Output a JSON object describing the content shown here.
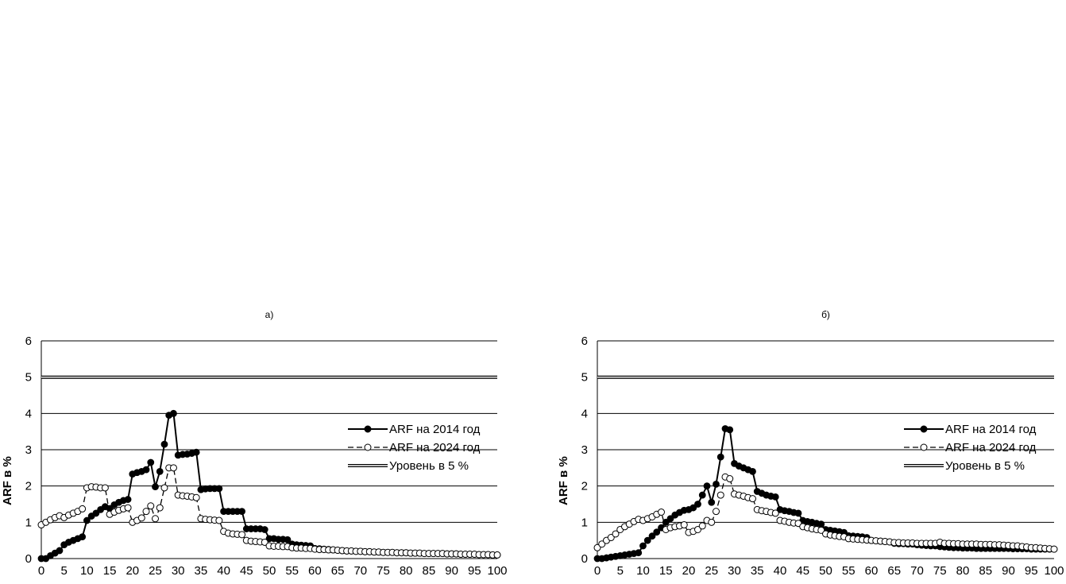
{
  "figure": {
    "background": "#ffffff",
    "colors": {
      "series_2014": "#000000",
      "series_2024": "#000000",
      "level_line": "#000000",
      "grid": "#000000"
    }
  },
  "chart_data": [
    {
      "type": "line",
      "panel_label": "a)",
      "ylabel": "ARF в %",
      "xlabel": "",
      "ylim": [
        0,
        6
      ],
      "yticks": [
        0,
        1,
        2,
        3,
        4,
        5,
        6
      ],
      "xlim": [
        0,
        100
      ],
      "xticks": [
        0,
        5,
        10,
        15,
        20,
        25,
        30,
        35,
        40,
        45,
        50,
        55,
        60,
        65,
        70,
        75,
        80,
        85,
        90,
        95,
        100
      ],
      "grid": true,
      "legend_position": "right",
      "series": [
        {
          "name": "ARF на 2014 год",
          "style": "solid-filled",
          "x": [
            0,
            1,
            2,
            3,
            4,
            5,
            6,
            7,
            8,
            9,
            10,
            11,
            12,
            13,
            14,
            15,
            16,
            17,
            18,
            19,
            20,
            21,
            22,
            23,
            24,
            25,
            26,
            27,
            28,
            29,
            30,
            31,
            32,
            33,
            34,
            35,
            36,
            37,
            38,
            39,
            40,
            41,
            42,
            43,
            44,
            45,
            46,
            47,
            48,
            49,
            50,
            51,
            52,
            53,
            54,
            55,
            56,
            57,
            58,
            59,
            60,
            61,
            62,
            63,
            64,
            65,
            66,
            67,
            68,
            69,
            70,
            71,
            72,
            73,
            74,
            75,
            76,
            77,
            78,
            79,
            80,
            81,
            82,
            83,
            84,
            85,
            86,
            87,
            88,
            89,
            90,
            91,
            92,
            93,
            94,
            95,
            96,
            97,
            98,
            99,
            100
          ],
          "y": [
            0,
            0,
            0.08,
            0.15,
            0.22,
            0.38,
            0.45,
            0.5,
            0.55,
            0.6,
            1.05,
            1.17,
            1.25,
            1.35,
            1.43,
            1.38,
            1.48,
            1.55,
            1.6,
            1.63,
            2.33,
            2.37,
            2.4,
            2.45,
            2.65,
            1.98,
            2.4,
            3.15,
            3.95,
            4.0,
            2.85,
            2.87,
            2.88,
            2.9,
            2.93,
            1.9,
            1.92,
            1.93,
            1.93,
            1.93,
            1.3,
            1.3,
            1.3,
            1.3,
            1.3,
            0.82,
            0.82,
            0.82,
            0.82,
            0.8,
            0.55,
            0.55,
            0.53,
            0.53,
            0.52,
            0.4,
            0.38,
            0.37,
            0.36,
            0.35,
            0.28,
            0.27,
            0.26,
            0.25,
            0.24,
            0.23,
            0.22,
            0.21,
            0.21,
            0.2,
            0.2,
            0.19,
            0.19,
            0.18,
            0.18,
            0.17,
            0.17,
            0.17,
            0.16,
            0.16,
            0.16,
            0.15,
            0.15,
            0.15,
            0.14,
            0.14,
            0.14,
            0.14,
            0.14,
            0.13,
            0.13,
            0.13,
            0.12,
            0.12,
            0.12,
            0.12,
            0.11,
            0.11,
            0.11,
            0.1,
            0.1
          ]
        },
        {
          "name": "ARF на 2024 год",
          "style": "dashed-open",
          "x": [
            0,
            1,
            2,
            3,
            4,
            5,
            6,
            7,
            8,
            9,
            10,
            11,
            12,
            13,
            14,
            15,
            16,
            17,
            18,
            19,
            20,
            21,
            22,
            23,
            24,
            25,
            26,
            27,
            28,
            29,
            30,
            31,
            32,
            33,
            34,
            35,
            36,
            37,
            38,
            39,
            40,
            41,
            42,
            43,
            44,
            45,
            46,
            47,
            48,
            49,
            50,
            51,
            52,
            53,
            54,
            55,
            56,
            57,
            58,
            59,
            60,
            61,
            62,
            63,
            64,
            65,
            66,
            67,
            68,
            69,
            70,
            71,
            72,
            73,
            74,
            75,
            76,
            77,
            78,
            79,
            80,
            81,
            82,
            83,
            84,
            85,
            86,
            87,
            88,
            89,
            90,
            91,
            92,
            93,
            94,
            95,
            96,
            97,
            98,
            99,
            100
          ],
          "y": [
            0.93,
            1.0,
            1.07,
            1.13,
            1.18,
            1.13,
            1.2,
            1.25,
            1.3,
            1.37,
            1.95,
            1.98,
            1.97,
            1.95,
            1.95,
            1.22,
            1.28,
            1.33,
            1.37,
            1.4,
            1.0,
            1.05,
            1.12,
            1.3,
            1.45,
            1.1,
            1.4,
            1.95,
            2.5,
            2.5,
            1.75,
            1.73,
            1.72,
            1.7,
            1.68,
            1.1,
            1.08,
            1.07,
            1.06,
            1.05,
            0.75,
            0.7,
            0.68,
            0.67,
            0.66,
            0.5,
            0.48,
            0.47,
            0.46,
            0.45,
            0.35,
            0.34,
            0.34,
            0.33,
            0.33,
            0.3,
            0.29,
            0.29,
            0.28,
            0.28,
            0.26,
            0.25,
            0.25,
            0.24,
            0.24,
            0.23,
            0.22,
            0.21,
            0.21,
            0.2,
            0.2,
            0.19,
            0.19,
            0.18,
            0.18,
            0.17,
            0.17,
            0.17,
            0.16,
            0.16,
            0.16,
            0.15,
            0.15,
            0.15,
            0.14,
            0.14,
            0.14,
            0.14,
            0.14,
            0.13,
            0.13,
            0.13,
            0.12,
            0.12,
            0.12,
            0.12,
            0.11,
            0.11,
            0.11,
            0.1,
            0.1
          ]
        },
        {
          "name": "Уровень в 5 %",
          "style": "double",
          "x": [
            0,
            100
          ],
          "y": [
            5,
            5
          ]
        }
      ]
    },
    {
      "type": "line",
      "panel_label": "б)",
      "ylabel": "ARF в %",
      "xlabel": "",
      "ylim": [
        0,
        6
      ],
      "yticks": [
        0,
        1,
        2,
        3,
        4,
        5,
        6
      ],
      "xlim": [
        0,
        100
      ],
      "xticks": [
        0,
        5,
        10,
        15,
        20,
        25,
        30,
        35,
        40,
        45,
        50,
        55,
        60,
        65,
        70,
        75,
        80,
        85,
        90,
        95,
        100
      ],
      "grid": true,
      "legend_position": "right",
      "series": [
        {
          "name": "ARF на 2014 год",
          "style": "solid-filled",
          "x": [
            0,
            1,
            2,
            3,
            4,
            5,
            6,
            7,
            8,
            9,
            10,
            11,
            12,
            13,
            14,
            15,
            16,
            17,
            18,
            19,
            20,
            21,
            22,
            23,
            24,
            25,
            26,
            27,
            28,
            29,
            30,
            31,
            32,
            33,
            34,
            35,
            36,
            37,
            38,
            39,
            40,
            41,
            42,
            43,
            44,
            45,
            46,
            47,
            48,
            49,
            50,
            51,
            52,
            53,
            54,
            55,
            56,
            57,
            58,
            59,
            60,
            61,
            62,
            63,
            64,
            65,
            66,
            67,
            68,
            69,
            70,
            71,
            72,
            73,
            74,
            75,
            76,
            77,
            78,
            79,
            80,
            81,
            82,
            83,
            84,
            85,
            86,
            87,
            88,
            89,
            90,
            91,
            92,
            93,
            94,
            95,
            96,
            97,
            98,
            99,
            100
          ],
          "y": [
            0,
            0,
            0.02,
            0.04,
            0.06,
            0.08,
            0.1,
            0.12,
            0.14,
            0.16,
            0.35,
            0.5,
            0.62,
            0.73,
            0.85,
            1.0,
            1.1,
            1.2,
            1.27,
            1.33,
            1.35,
            1.4,
            1.5,
            1.75,
            2.0,
            1.55,
            2.05,
            2.8,
            3.58,
            3.55,
            2.62,
            2.55,
            2.5,
            2.45,
            2.4,
            1.85,
            1.8,
            1.75,
            1.72,
            1.7,
            1.35,
            1.32,
            1.3,
            1.27,
            1.25,
            1.05,
            1.02,
            1.0,
            0.97,
            0.95,
            0.8,
            0.78,
            0.76,
            0.74,
            0.72,
            0.63,
            0.62,
            0.61,
            0.6,
            0.58,
            0.5,
            0.49,
            0.48,
            0.47,
            0.46,
            0.42,
            0.41,
            0.41,
            0.4,
            0.4,
            0.38,
            0.37,
            0.36,
            0.35,
            0.35,
            0.33,
            0.32,
            0.31,
            0.3,
            0.3,
            0.29,
            0.29,
            0.29,
            0.28,
            0.28,
            0.28,
            0.28,
            0.28,
            0.28,
            0.28,
            0.28,
            0.27,
            0.27,
            0.27,
            0.27,
            0.26,
            0.26,
            0.26,
            0.26,
            0.26,
            0.26
          ]
        },
        {
          "name": "ARF на 2024 год",
          "style": "dashed-open",
          "x": [
            0,
            1,
            2,
            3,
            4,
            5,
            6,
            7,
            8,
            9,
            10,
            11,
            12,
            13,
            14,
            15,
            16,
            17,
            18,
            19,
            20,
            21,
            22,
            23,
            24,
            25,
            26,
            27,
            28,
            29,
            30,
            31,
            32,
            33,
            34,
            35,
            36,
            37,
            38,
            39,
            40,
            41,
            42,
            43,
            44,
            45,
            46,
            47,
            48,
            49,
            50,
            51,
            52,
            53,
            54,
            55,
            56,
            57,
            58,
            59,
            60,
            61,
            62,
            63,
            64,
            65,
            66,
            67,
            68,
            69,
            70,
            71,
            72,
            73,
            74,
            75,
            76,
            77,
            78,
            79,
            80,
            81,
            82,
            83,
            84,
            85,
            86,
            87,
            88,
            89,
            90,
            91,
            92,
            93,
            94,
            95,
            96,
            97,
            98,
            99,
            100
          ],
          "y": [
            0.3,
            0.4,
            0.5,
            0.58,
            0.68,
            0.8,
            0.88,
            0.95,
            1.02,
            1.08,
            1.05,
            1.1,
            1.15,
            1.22,
            1.28,
            0.8,
            0.85,
            0.88,
            0.9,
            0.93,
            0.72,
            0.75,
            0.8,
            0.9,
            1.05,
            1.0,
            1.3,
            1.75,
            2.25,
            2.2,
            1.78,
            1.75,
            1.72,
            1.68,
            1.65,
            1.35,
            1.32,
            1.3,
            1.27,
            1.25,
            1.05,
            1.03,
            1.0,
            0.98,
            0.97,
            0.88,
            0.85,
            0.82,
            0.8,
            0.78,
            0.68,
            0.65,
            0.63,
            0.61,
            0.6,
            0.55,
            0.54,
            0.53,
            0.52,
            0.51,
            0.5,
            0.49,
            0.48,
            0.47,
            0.46,
            0.44,
            0.44,
            0.43,
            0.43,
            0.43,
            0.42,
            0.42,
            0.42,
            0.42,
            0.42,
            0.45,
            0.42,
            0.42,
            0.41,
            0.41,
            0.4,
            0.4,
            0.4,
            0.4,
            0.39,
            0.39,
            0.39,
            0.38,
            0.38,
            0.37,
            0.36,
            0.35,
            0.35,
            0.33,
            0.32,
            0.3,
            0.3,
            0.29,
            0.28,
            0.27,
            0.26
          ]
        },
        {
          "name": "Уровень в 5 %",
          "style": "double",
          "x": [
            0,
            100
          ],
          "y": [
            5,
            5
          ]
        }
      ]
    }
  ]
}
